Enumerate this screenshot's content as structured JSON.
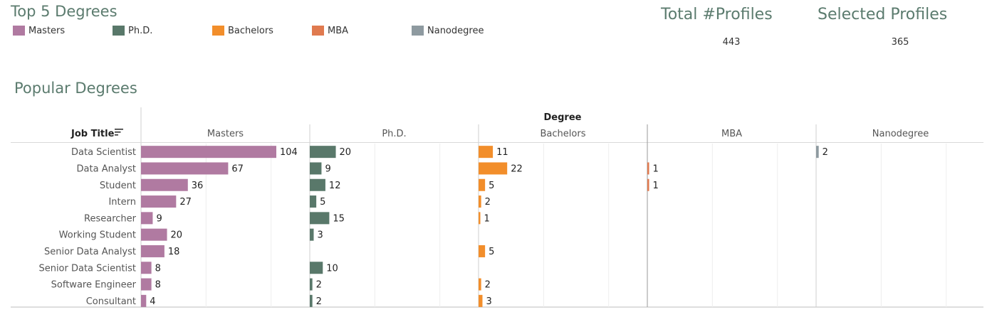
{
  "legend": {
    "title": "Top 5 Degrees",
    "items": [
      {
        "label": "Masters",
        "color": "#b07aa1"
      },
      {
        "label": "Ph.D.",
        "color": "#59786a"
      },
      {
        "label": "Bachelors",
        "color": "#f28e2b"
      },
      {
        "label": "MBA",
        "color": "#e07a4f"
      },
      {
        "label": "Nanodegree",
        "color": "#8e9aa0"
      }
    ]
  },
  "kpis": {
    "total_label": "Total #Profiles",
    "total_value": "443",
    "selected_label": "Selected Profiles",
    "selected_value": "365"
  },
  "chart_data": {
    "type": "bar",
    "title": "Popular Degrees",
    "column_header": "Degree",
    "row_header": "Job Title",
    "categories": [
      "Data Scientist",
      "Data Analyst",
      "Student",
      "Intern",
      "Researcher",
      "Working Student",
      "Senior Data Analyst",
      "Senior Data Scientist",
      "Software Engineer",
      "Consultant"
    ],
    "series": [
      {
        "name": "Masters",
        "color": "#b07aa1",
        "values": [
          104,
          67,
          36,
          27,
          9,
          20,
          18,
          8,
          8,
          4
        ]
      },
      {
        "name": "Ph.D.",
        "color": "#59786a",
        "values": [
          20,
          9,
          12,
          5,
          15,
          3,
          null,
          10,
          2,
          2
        ]
      },
      {
        "name": "Bachelors",
        "color": "#f28e2b",
        "values": [
          11,
          22,
          5,
          2,
          1,
          null,
          5,
          null,
          2,
          3
        ]
      },
      {
        "name": "MBA",
        "color": "#e07a4f",
        "values": [
          null,
          1,
          1,
          null,
          null,
          null,
          null,
          null,
          null,
          null
        ]
      },
      {
        "name": "Nanodegree",
        "color": "#8e9aa0",
        "values": [
          2,
          null,
          null,
          null,
          null,
          null,
          null,
          null,
          null,
          null
        ]
      }
    ],
    "xlim": [
      0,
      130
    ],
    "orientation": "horizontal",
    "panels": "one per degree"
  }
}
